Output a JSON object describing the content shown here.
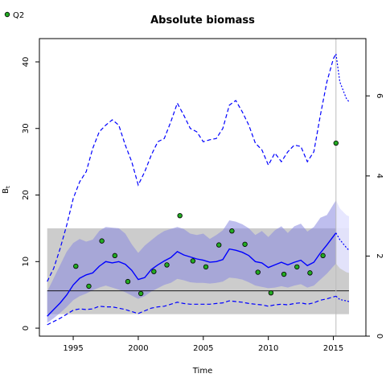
{
  "chart_data": {
    "type": "line",
    "title": "Absolute biomass",
    "xlabel": "Time",
    "ylabel": "B",
    "ylabel_sub": "t",
    "xlim": [
      1992.4,
      2017.5
    ],
    "ylim": [
      -1.2,
      43.5
    ],
    "right_ylim": [
      0,
      7.43
    ],
    "x_ticks": [
      "1995",
      "2000",
      "2005",
      "2010",
      "2015"
    ],
    "y_ticks": [
      "0",
      "10",
      "20",
      "30",
      "40"
    ],
    "right_ticks": [
      "0",
      "2",
      "4",
      "6"
    ],
    "legend": [
      {
        "label": "Q2",
        "marker": "circle",
        "color": "#22aa22"
      }
    ],
    "reference_line": {
      "y": 5.6,
      "color": "#000000"
    },
    "reference_band": {
      "x": [
        1993.0,
        2016.2
      ],
      "y": [
        2.1,
        15.0
      ],
      "color": "#cccccc"
    },
    "vertical_line": {
      "x": 2015.2,
      "color": "#bbbbbb"
    },
    "estimate_line": {
      "color": "#0000ff",
      "x": [
        1993.0,
        1993.5,
        1994.0,
        1994.5,
        1995.0,
        1995.5,
        1996.0,
        1996.5,
        1997.0,
        1997.5,
        1998.0,
        1998.5,
        1999.0,
        1999.5,
        2000.0,
        2000.5,
        2001.0,
        2001.5,
        2002.0,
        2002.5,
        2003.0,
        2003.5,
        2004.0,
        2004.5,
        2005.0,
        2005.5,
        2006.0,
        2006.5,
        2007.0,
        2007.5,
        2008.0,
        2008.5,
        2009.0,
        2009.5,
        2010.0,
        2010.5,
        2011.0,
        2011.5,
        2012.0,
        2012.5,
        2013.0,
        2013.5,
        2014.0,
        2014.5,
        2015.0,
        2015.2
      ],
      "y": [
        1.8,
        2.8,
        3.8,
        5.0,
        6.5,
        7.5,
        8.0,
        8.3,
        9.3,
        10.0,
        9.8,
        10.0,
        9.6,
        8.7,
        7.3,
        7.6,
        8.8,
        9.5,
        10.1,
        10.6,
        11.5,
        11.0,
        10.7,
        10.4,
        10.2,
        9.9,
        10.0,
        10.3,
        11.9,
        11.7,
        11.4,
        10.9,
        10.0,
        9.8,
        9.1,
        9.5,
        9.9,
        9.5,
        9.9,
        10.2,
        9.4,
        9.9,
        11.3,
        12.5,
        13.8,
        14.3
      ]
    },
    "estimate_forecast": {
      "color": "#0000ff",
      "x": [
        2015.2,
        2015.5,
        2016.0,
        2016.2
      ],
      "y": [
        14.3,
        13.3,
        12.1,
        11.7
      ]
    },
    "band": {
      "color": "#8888e0",
      "x": [
        1993.0,
        1993.5,
        1994.0,
        1994.5,
        1995.0,
        1995.5,
        1996.0,
        1996.5,
        1997.0,
        1997.5,
        1998.0,
        1998.5,
        1999.0,
        1999.5,
        2000.0,
        2000.5,
        2001.0,
        2001.5,
        2002.0,
        2002.5,
        2003.0,
        2003.5,
        2004.0,
        2004.5,
        2005.0,
        2005.5,
        2006.0,
        2006.5,
        2007.0,
        2007.5,
        2008.0,
        2008.5,
        2009.0,
        2009.5,
        2010.0,
        2010.5,
        2011.0,
        2011.5,
        2012.0,
        2012.5,
        2013.0,
        2013.5,
        2014.0,
        2014.5,
        2015.0,
        2015.2
      ],
      "lower": [
        0.8,
        1.5,
        2.3,
        3.2,
        4.2,
        4.8,
        5.2,
        5.7,
        6.1,
        6.4,
        6.1,
        5.8,
        5.4,
        4.9,
        4.4,
        4.8,
        5.5,
        6.0,
        6.5,
        6.8,
        7.4,
        7.2,
        6.9,
        6.8,
        6.8,
        6.7,
        6.8,
        7.0,
        7.6,
        7.5,
        7.3,
        6.9,
        6.4,
        6.2,
        6.0,
        6.1,
        6.3,
        6.1,
        6.4,
        6.6,
        6.1,
        6.4,
        7.3,
        8.2,
        9.3,
        9.7
      ],
      "upper": [
        5.5,
        7.5,
        9.5,
        11.5,
        12.8,
        13.4,
        13.0,
        13.3,
        14.6,
        15.2,
        15.1,
        15.0,
        14.2,
        12.6,
        11.3,
        12.4,
        13.2,
        14.0,
        14.6,
        14.9,
        15.2,
        14.9,
        14.2,
        14.0,
        14.2,
        13.4,
        14.0,
        14.7,
        16.2,
        16.0,
        15.6,
        15.0,
        14.0,
        14.6,
        13.7,
        14.7,
        15.3,
        14.3,
        15.3,
        15.7,
        14.5,
        15.2,
        16.6,
        17.0,
        18.6,
        19.2
      ]
    },
    "band_forecast": {
      "color": "#e4e4ff",
      "x": [
        2015.2,
        2015.5,
        2016.0,
        2016.2
      ],
      "lower": [
        9.7,
        9.0,
        8.4,
        8.3
      ],
      "upper": [
        19.2,
        18.0,
        17.0,
        16.8
      ]
    },
    "upper_dashed": {
      "color": "#0000ff",
      "x": [
        1993.0,
        1993.5,
        1994.0,
        1994.5,
        1995.0,
        1995.5,
        1996.0,
        1996.5,
        1997.0,
        1997.5,
        1998.0,
        1998.5,
        1999.0,
        1999.5,
        2000.0,
        2000.5,
        2001.0,
        2001.5,
        2002.0,
        2002.5,
        2003.0,
        2003.5,
        2004.0,
        2004.5,
        2005.0,
        2005.5,
        2006.0,
        2006.5,
        2007.0,
        2007.5,
        2008.0,
        2008.5,
        2009.0,
        2009.5,
        2010.0,
        2010.5,
        2011.0,
        2011.5,
        2012.0,
        2012.5,
        2013.0,
        2013.5,
        2014.0,
        2014.5,
        2015.0,
        2015.2
      ],
      "y": [
        7.0,
        9.0,
        12.0,
        15.5,
        19.5,
        22.0,
        23.5,
        27.0,
        29.5,
        30.5,
        31.3,
        30.5,
        27.5,
        25.0,
        21.5,
        23.5,
        26.0,
        28.0,
        28.5,
        31.0,
        33.8,
        32.0,
        30.0,
        29.5,
        28.0,
        28.3,
        28.5,
        30.0,
        33.5,
        34.2,
        32.5,
        30.5,
        27.8,
        26.8,
        24.5,
        26.3,
        25.0,
        26.5,
        27.5,
        27.3,
        25.0,
        26.5,
        32.0,
        37.0,
        40.5,
        41.2
      ]
    },
    "upper_forecast": {
      "color": "#0000ff",
      "x": [
        2015.2,
        2015.5,
        2016.0,
        2016.2
      ],
      "y": [
        41.2,
        37.0,
        34.5,
        34.0
      ]
    },
    "lower_dashed": {
      "color": "#0000ff",
      "x": [
        1993.0,
        1993.5,
        1994.0,
        1994.5,
        1995.0,
        1995.5,
        1996.0,
        1996.5,
        1997.0,
        1997.5,
        1998.0,
        1998.5,
        1999.0,
        1999.5,
        2000.0,
        2000.5,
        2001.0,
        2001.5,
        2002.0,
        2002.5,
        2003.0,
        2003.5,
        2004.0,
        2004.5,
        2005.0,
        2005.5,
        2006.0,
        2006.5,
        2007.0,
        2007.5,
        2008.0,
        2008.5,
        2009.0,
        2009.5,
        2010.0,
        2010.5,
        2011.0,
        2011.5,
        2012.0,
        2012.5,
        2013.0,
        2013.5,
        2014.0,
        2014.5,
        2015.0,
        2015.2
      ],
      "y": [
        0.5,
        1.0,
        1.5,
        2.1,
        2.7,
        2.9,
        2.8,
        2.9,
        3.3,
        3.2,
        3.2,
        3.0,
        2.8,
        2.5,
        2.2,
        2.6,
        3.0,
        3.2,
        3.3,
        3.6,
        3.9,
        3.7,
        3.6,
        3.6,
        3.6,
        3.6,
        3.7,
        3.8,
        4.1,
        4.0,
        3.9,
        3.7,
        3.6,
        3.5,
        3.3,
        3.5,
        3.6,
        3.5,
        3.7,
        3.8,
        3.6,
        3.8,
        4.2,
        4.4,
        4.7,
        4.8
      ]
    },
    "lower_forecast": {
      "color": "#0000ff",
      "x": [
        2015.2,
        2015.5,
        2016.0,
        2016.2
      ],
      "y": [
        4.8,
        4.3,
        4.1,
        4.0
      ]
    },
    "observations": {
      "name": "Q2",
      "color": "#22aa22",
      "x": [
        1995.2,
        1996.2,
        1997.2,
        1998.2,
        1999.2,
        2000.2,
        2001.2,
        2002.2,
        2003.2,
        2004.2,
        2005.2,
        2006.2,
        2007.2,
        2008.2,
        2009.2,
        2010.2,
        2011.2,
        2012.2,
        2013.2,
        2014.2,
        2015.2
      ],
      "y": [
        9.3,
        6.3,
        13.1,
        10.9,
        7.0,
        5.2,
        8.5,
        9.5,
        16.9,
        10.1,
        9.2,
        12.5,
        14.6,
        12.6,
        8.4,
        5.3,
        8.1,
        9.2,
        8.3,
        10.9,
        27.8
      ]
    }
  }
}
